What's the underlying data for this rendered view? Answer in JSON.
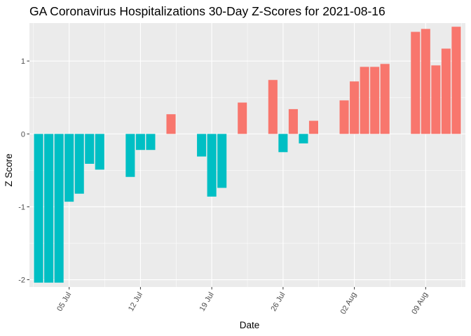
{
  "chart_data": {
    "type": "bar",
    "title": "GA Coronavirus Hospitalizations 30-Day Z-Scores for 2021-08-16",
    "xlabel": "Date",
    "ylabel": "Z Score",
    "x_ticks": [
      "05 Jul",
      "12 Jul",
      "19 Jul",
      "26 Jul",
      "02 Aug",
      "09 Aug"
    ],
    "y_ticks": [
      "-2",
      "-1",
      "0",
      "1"
    ],
    "ylim": [
      -2.1,
      1.52
    ],
    "grid": true,
    "legend": "none",
    "colors": {
      "positive": "#f8766d",
      "negative": "#00bfc4",
      "panel": "#ebebeb",
      "grid": "#ffffff"
    },
    "bars": [
      {
        "date": "2021-07-02",
        "value": -2.04
      },
      {
        "date": "2021-07-03",
        "value": -2.04
      },
      {
        "date": "2021-07-04",
        "value": -2.04
      },
      {
        "date": "2021-07-05",
        "value": -0.93
      },
      {
        "date": "2021-07-06",
        "value": -0.82
      },
      {
        "date": "2021-07-07",
        "value": -0.41
      },
      {
        "date": "2021-07-08",
        "value": -0.49
      },
      {
        "date": "2021-07-11",
        "value": -0.59
      },
      {
        "date": "2021-07-12",
        "value": -0.22
      },
      {
        "date": "2021-07-13",
        "value": -0.22
      },
      {
        "date": "2021-07-15",
        "value": 0.27
      },
      {
        "date": "2021-07-18",
        "value": -0.31
      },
      {
        "date": "2021-07-19",
        "value": -0.86
      },
      {
        "date": "2021-07-20",
        "value": -0.74
      },
      {
        "date": "2021-07-22",
        "value": 0.43
      },
      {
        "date": "2021-07-25",
        "value": 0.74
      },
      {
        "date": "2021-07-26",
        "value": -0.25
      },
      {
        "date": "2021-07-27",
        "value": 0.34
      },
      {
        "date": "2021-07-28",
        "value": -0.13
      },
      {
        "date": "2021-07-29",
        "value": 0.18
      },
      {
        "date": "2021-08-01",
        "value": 0.46
      },
      {
        "date": "2021-08-02",
        "value": 0.72
      },
      {
        "date": "2021-08-03",
        "value": 0.92
      },
      {
        "date": "2021-08-04",
        "value": 0.92
      },
      {
        "date": "2021-08-05",
        "value": 0.96
      },
      {
        "date": "2021-08-08",
        "value": 1.4
      },
      {
        "date": "2021-08-09",
        "value": 1.44
      },
      {
        "date": "2021-08-10",
        "value": 0.94
      },
      {
        "date": "2021-08-11",
        "value": 1.17
      },
      {
        "date": "2021-08-12",
        "value": 1.47
      }
    ]
  }
}
